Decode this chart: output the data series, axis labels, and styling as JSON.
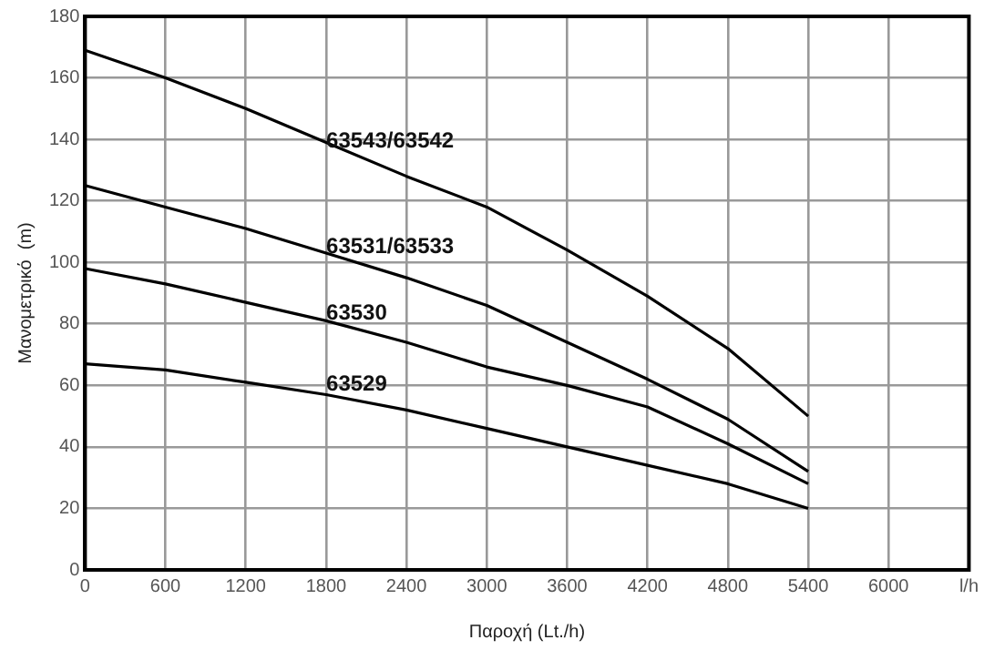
{
  "chart_data": {
    "type": "line",
    "xlabel": "Παροχή (Lt./h)",
    "ylabel": "Μανομετρικό  (m)",
    "x": [
      0,
      600,
      1200,
      1800,
      2400,
      3000,
      3600,
      4200,
      4800,
      5400
    ],
    "series": [
      {
        "name": "63543/63542",
        "color": "#000000",
        "values": [
          169,
          160,
          150,
          139,
          128,
          118,
          104,
          89,
          72,
          50
        ]
      },
      {
        "name": "63531/63533",
        "color": "#000000",
        "values": [
          125,
          118,
          111,
          103,
          95,
          86,
          74,
          62,
          49,
          32
        ]
      },
      {
        "name": "63530",
        "color": "#000000",
        "values": [
          98,
          93,
          87,
          81,
          74,
          66,
          60,
          53,
          41,
          28
        ]
      },
      {
        "name": "63529",
        "color": "#000000",
        "values": [
          67,
          65,
          61,
          57,
          52,
          46,
          40,
          34,
          28,
          20
        ]
      }
    ],
    "xlim": [
      0,
      6600
    ],
    "xticks": [
      0,
      600,
      1200,
      1800,
      2400,
      3000,
      3600,
      4200,
      4800,
      5400,
      6000,
      {
        "value": 6600,
        "label": "l/h"
      }
    ],
    "ylim": [
      0,
      180
    ],
    "yticks": [
      0,
      20,
      40,
      60,
      80,
      100,
      120,
      140,
      160,
      180
    ],
    "grid": true,
    "legend": false,
    "marker": "none",
    "line_style": "solid"
  }
}
